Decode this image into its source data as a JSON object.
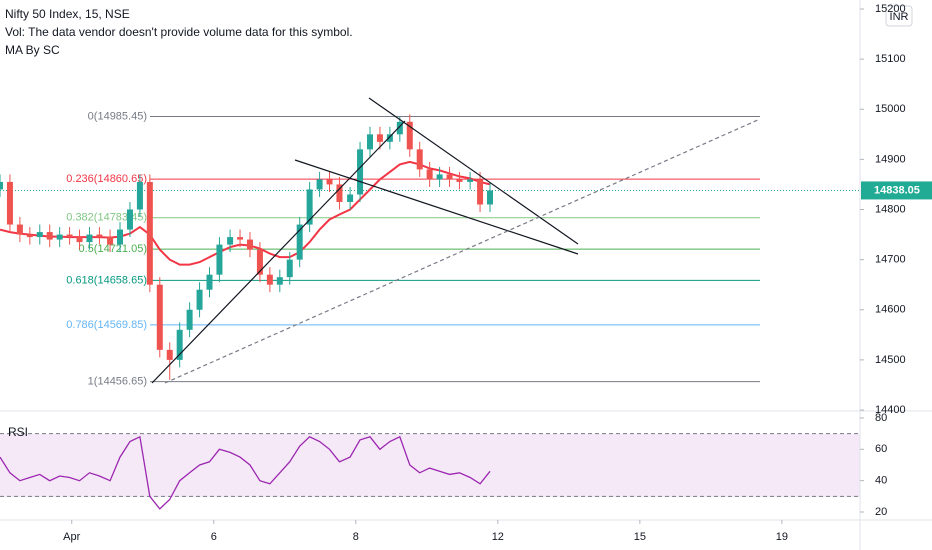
{
  "chart_data": {
    "type": "candlestick",
    "title": "Nifty 50 Index, 15, NSE",
    "subtitle": "Vol: The data vendor doesn't provide volume data for this symbol.",
    "indicator": "MA By SC",
    "currency": "INR",
    "up_color": "#26a69a",
    "down_color": "#ef5350",
    "xlim": [
      -1.01,
      11.1
    ],
    "xticks": [
      {
        "value": 0,
        "label": "Apr"
      },
      {
        "value": 2,
        "label": "6"
      },
      {
        "value": 4,
        "label": "8"
      },
      {
        "value": 6,
        "label": "12"
      },
      {
        "value": 8,
        "label": "15"
      },
      {
        "value": 10,
        "label": "19"
      }
    ],
    "ylim": [
      14400,
      15218
    ],
    "yticks": [
      14400,
      14500,
      14600,
      14700,
      14800,
      14900,
      15000,
      15100,
      15200
    ],
    "x": [
      -1.01,
      -0.87,
      -0.73,
      -0.59,
      -0.45,
      -0.31,
      -0.17,
      -0.03,
      0.11,
      0.25,
      0.39,
      0.54,
      0.68,
      0.82,
      0.96,
      1.1,
      1.24,
      1.38,
      1.52,
      1.66,
      1.8,
      1.94,
      2.08,
      2.23,
      2.37,
      2.51,
      2.65,
      2.79,
      2.93,
      3.07,
      3.21,
      3.35,
      3.49,
      3.63,
      3.77,
      3.92,
      4.06,
      4.2,
      4.34,
      4.48,
      4.62,
      4.76,
      4.9,
      5.04,
      5.18,
      5.32,
      5.46,
      5.61,
      5.75,
      5.89
    ],
    "open": [
      14840,
      14855,
      14770,
      14750,
      14745,
      14755,
      14740,
      14750,
      14745,
      14735,
      14750,
      14745,
      14730,
      14760,
      14800,
      14855,
      14650,
      14520,
      14500,
      14560,
      14600,
      14640,
      14670,
      14730,
      14745,
      14740,
      14720,
      14670,
      14650,
      14665,
      14700,
      14770,
      14840,
      14860,
      14850,
      14815,
      14830,
      14920,
      14950,
      14935,
      14950,
      14975,
      14920,
      14880,
      14860,
      14870,
      14860,
      14855,
      14860,
      14810
    ],
    "high": [
      14870,
      14870,
      14785,
      14765,
      14770,
      14770,
      14765,
      14765,
      14760,
      14765,
      14765,
      14760,
      14775,
      14815,
      14870,
      14870,
      14665,
      14535,
      14575,
      14615,
      14655,
      14685,
      14745,
      14760,
      14760,
      14755,
      14735,
      14685,
      14680,
      14715,
      14785,
      14855,
      14875,
      14875,
      14865,
      14845,
      14935,
      14965,
      14965,
      14965,
      14985,
      14990,
      14935,
      14895,
      14885,
      14885,
      14875,
      14875,
      14875,
      14853
    ],
    "low": [
      14825,
      14755,
      14735,
      14730,
      14730,
      14725,
      14725,
      14730,
      14720,
      14720,
      14730,
      14715,
      14715,
      14745,
      14785,
      14635,
      14505,
      14460,
      14485,
      14545,
      14585,
      14625,
      14655,
      14715,
      14725,
      14705,
      14655,
      14635,
      14635,
      14650,
      14685,
      14755,
      14825,
      14835,
      14800,
      14800,
      14815,
      14905,
      14920,
      14920,
      14935,
      14905,
      14865,
      14845,
      14845,
      14845,
      14840,
      14840,
      14795,
      14795
    ],
    "close": [
      14855,
      14770,
      14750,
      14745,
      14755,
      14740,
      14750,
      14745,
      14735,
      14750,
      14745,
      14730,
      14760,
      14800,
      14855,
      14650,
      14520,
      14500,
      14560,
      14600,
      14640,
      14670,
      14730,
      14745,
      14740,
      14720,
      14670,
      14650,
      14665,
      14700,
      14770,
      14840,
      14860,
      14850,
      14815,
      14830,
      14920,
      14950,
      14935,
      14950,
      14975,
      14920,
      14880,
      14860,
      14870,
      14860,
      14855,
      14860,
      14810,
      14838
    ],
    "ma": {
      "color": "#f23645",
      "values": [
        14760,
        14755,
        14752,
        14750,
        14748,
        14746,
        14746,
        14745,
        14745,
        14745,
        14745,
        14744,
        14746,
        14752,
        14765,
        14750,
        14720,
        14700,
        14690,
        14690,
        14695,
        14705,
        14715,
        14725,
        14730,
        14728,
        14722,
        14712,
        14705,
        14705,
        14715,
        14735,
        14760,
        14780,
        14790,
        14800,
        14820,
        14840,
        14860,
        14875,
        14890,
        14895,
        14890,
        14882,
        14878,
        14872,
        14866,
        14862,
        14855,
        14850
      ]
    },
    "last_price": {
      "value": 14838.05,
      "label": "14838.05",
      "color": "#22ab94"
    },
    "fib_levels": [
      {
        "label": "0(14985.45)",
        "value": 14985.45,
        "color": "#787b86"
      },
      {
        "label": "0.236(14860.65)",
        "value": 14860.65,
        "color": "#f23645"
      },
      {
        "label": "0.382(14783.45)",
        "value": 14783.45,
        "color": "#81c784"
      },
      {
        "label": "0.5(14721.05)",
        "value": 14721.05,
        "color": "#4caf50"
      },
      {
        "label": "0.618(14658.65)",
        "value": 14658.65,
        "color": "#089981"
      },
      {
        "label": "0.786(14569.85)",
        "value": 14569.85,
        "color": "#64b5f6"
      },
      {
        "label": "1(14456.65)",
        "value": 14456.65,
        "color": "#787b86"
      }
    ],
    "rsi": {
      "name": "RSI",
      "color": "#9c27b0",
      "ylim": [
        14.9,
        83.8
      ],
      "yticks": [
        20,
        40,
        60,
        80
      ],
      "levels": [
        70,
        30
      ],
      "values": [
        55,
        45,
        40,
        42,
        44,
        40,
        43,
        42,
        40,
        45,
        43,
        40,
        55,
        65,
        68,
        30,
        22,
        28,
        40,
        45,
        50,
        52,
        60,
        58,
        55,
        50,
        40,
        38,
        45,
        52,
        62,
        68,
        65,
        60,
        52,
        55,
        66,
        68,
        60,
        65,
        68,
        50,
        45,
        48,
        46,
        44,
        45,
        42,
        38,
        46
      ]
    }
  }
}
